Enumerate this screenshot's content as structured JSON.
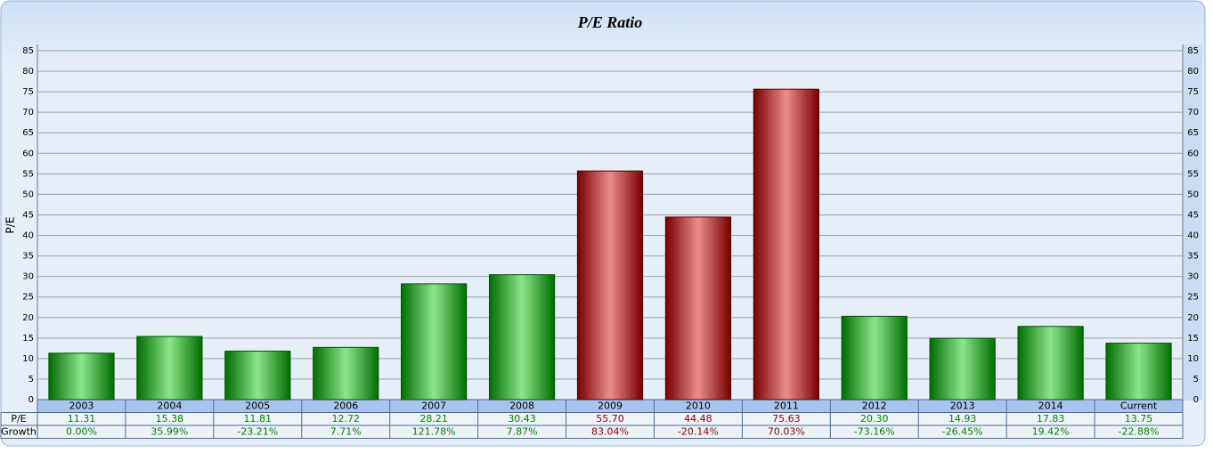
{
  "chart_data": {
    "type": "bar",
    "title": "P/E Ratio",
    "y_label": "P/E",
    "categories": [
      "2003",
      "2004",
      "2005",
      "2006",
      "2007",
      "2008",
      "2009",
      "2010",
      "2011",
      "2012",
      "2013",
      "2014",
      "Current"
    ],
    "series": [
      {
        "name": "P/E",
        "values": [
          11.31,
          15.38,
          11.81,
          12.72,
          28.21,
          30.43,
          55.7,
          44.48,
          75.63,
          20.3,
          14.93,
          17.83,
          13.75
        ],
        "value_labels": [
          "11.31",
          "15.38",
          "11.81",
          "12.72",
          "28.21",
          "30.43",
          "55.70",
          "44.48",
          "75.63",
          "20.30",
          "14.93",
          "17.83",
          "13.75"
        ],
        "colors": [
          "#00c800",
          "#00c800",
          "#00c800",
          "#00c800",
          "#00c800",
          "#00c800",
          "#d80000",
          "#d80000",
          "#d80000",
          "#00c800",
          "#00c800",
          "#00c800",
          "#00c800"
        ]
      }
    ],
    "growth": {
      "name": "Growth",
      "labels": [
        "0.00%",
        "35.99%",
        "-23.21%",
        "7.71%",
        "121.78%",
        "7.87%",
        "83.04%",
        "-20.14%",
        "70.03%",
        "-73.16%",
        "-26.45%",
        "19.42%",
        "-22.88%"
      ]
    },
    "ylim": [
      0,
      85
    ],
    "yticks": [
      0,
      5,
      10,
      15,
      20,
      25,
      30,
      35,
      40,
      45,
      50,
      55,
      60,
      65,
      70,
      75,
      80,
      85
    ],
    "grid": true
  }
}
